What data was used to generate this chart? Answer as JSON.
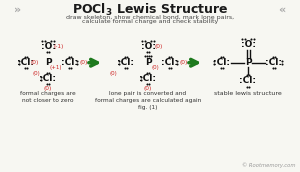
{
  "title": "POCl₃ Lewis Structure",
  "subtitle1": "draw skeleton, show chemical bond, mark lone pairs,",
  "subtitle2": "calculate formal charge and check stability",
  "bg_color": "#f7f7f2",
  "title_color": "#1a1a1a",
  "subtitle_color": "#444444",
  "atom_color": "#111111",
  "charge_color": "#cc2222",
  "dot_color": "#111111",
  "arrow_color": "#1e7a1e",
  "footer": "© Rootmemory.com",
  "caption1": "formal charges are\nnot closer to zero",
  "caption2": "lone pair is converted and\nformal charges are calculated again\nfig. (1)",
  "caption3": "stable lewis structure",
  "chevron_color": "#aaaaaa"
}
